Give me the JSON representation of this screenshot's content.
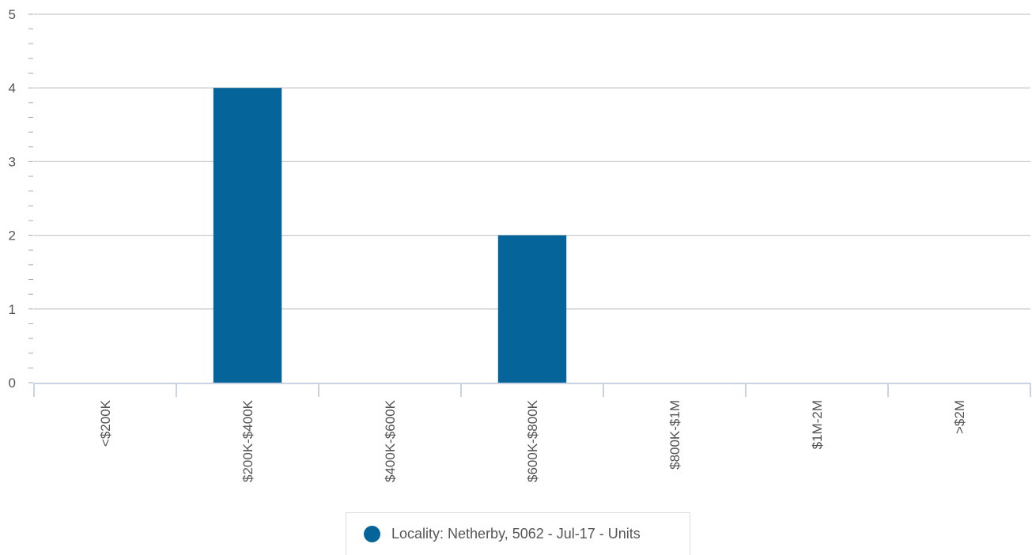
{
  "chart_data": {
    "type": "bar",
    "title": "",
    "xlabel": "",
    "ylabel": "",
    "categories": [
      "<$200K",
      "$200K-$400K",
      "$400K-$600K",
      "$600K-$800K",
      "$800K-$1M",
      "$1M-2M",
      ">$2M"
    ],
    "series": [
      {
        "name": "Locality: Netherby, 5062 - Jul-17 - Units",
        "color": "#05659a",
        "values": [
          0,
          4,
          0,
          2,
          0,
          0,
          0
        ]
      }
    ],
    "ylim": [
      0,
      5
    ],
    "yticks": [
      0,
      1,
      2,
      3,
      4,
      5
    ],
    "grid": true,
    "legend_position": "bottom-center",
    "category_label_rotation": "vertical"
  }
}
